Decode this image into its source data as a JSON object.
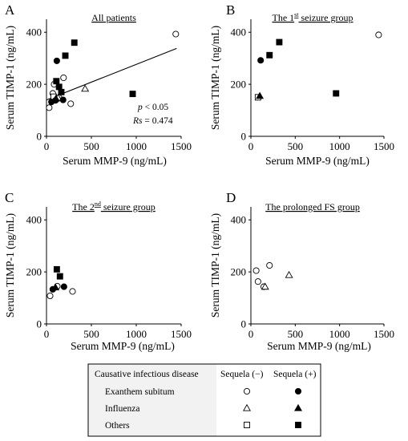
{
  "figure": {
    "legend": {
      "header": "Causative infectious disease",
      "col_minus": "Sequela (−)",
      "col_plus": "Sequela (+)",
      "rows": [
        {
          "label": "Exanthem subitum",
          "shape": "circle"
        },
        {
          "label": "Influenza",
          "shape": "triangle"
        },
        {
          "label": "Others",
          "shape": "square"
        }
      ]
    },
    "colors": {
      "filled": "#000000",
      "open_fill": "#ffffff",
      "stroke": "#000000",
      "legend_header_bg": "#f2f2f2"
    }
  },
  "chart_data": [
    {
      "id": "A",
      "panel_label": "A",
      "type": "scatter",
      "title": "All patients",
      "title_sup": "",
      "title_post": "",
      "xlabel": "Serum MMP-9 (ng/mL)",
      "ylabel": "Serum TIMP-1 (ng/mL)",
      "xlim": [
        0,
        1500
      ],
      "ylim": [
        0,
        450
      ],
      "xticks": [
        0,
        500,
        1000,
        1500
      ],
      "yticks": [
        0,
        200,
        400
      ],
      "grid": false,
      "annotation": {
        "p": "p",
        "p_rest": " < 0.05",
        "rs": "Rs",
        "rs_rest": " = 0.474"
      },
      "trendline": {
        "x": [
          0,
          1450
        ],
        "y": [
          140,
          338
        ]
      },
      "points": [
        {
          "x": 1440,
          "y": 393,
          "shape": "circle",
          "filled": false
        },
        {
          "x": 85,
          "y": 200,
          "shape": "circle",
          "filled": false
        },
        {
          "x": 190,
          "y": 225,
          "shape": "circle",
          "filled": false
        },
        {
          "x": 70,
          "y": 165,
          "shape": "circle",
          "filled": false
        },
        {
          "x": 30,
          "y": 110,
          "shape": "circle",
          "filled": false
        },
        {
          "x": 270,
          "y": 125,
          "shape": "circle",
          "filled": false
        },
        {
          "x": 140,
          "y": 148,
          "shape": "circle",
          "filled": false
        },
        {
          "x": 110,
          "y": 142,
          "shape": "circle",
          "filled": false
        },
        {
          "x": 430,
          "y": 183,
          "shape": "triangle",
          "filled": false
        },
        {
          "x": 130,
          "y": 148,
          "shape": "triangle",
          "filled": false
        },
        {
          "x": 80,
          "y": 152,
          "shape": "square",
          "filled": false
        },
        {
          "x": 115,
          "y": 290,
          "shape": "circle",
          "filled": true
        },
        {
          "x": 55,
          "y": 132,
          "shape": "circle",
          "filled": true
        },
        {
          "x": 100,
          "y": 138,
          "shape": "circle",
          "filled": true
        },
        {
          "x": 185,
          "y": 140,
          "shape": "circle",
          "filled": true
        },
        {
          "x": 105,
          "y": 145,
          "shape": "triangle",
          "filled": true
        },
        {
          "x": 310,
          "y": 360,
          "shape": "square",
          "filled": true
        },
        {
          "x": 210,
          "y": 310,
          "shape": "square",
          "filled": true
        },
        {
          "x": 960,
          "y": 163,
          "shape": "square",
          "filled": true
        },
        {
          "x": 110,
          "y": 212,
          "shape": "square",
          "filled": true
        },
        {
          "x": 140,
          "y": 190,
          "shape": "square",
          "filled": true
        },
        {
          "x": 165,
          "y": 170,
          "shape": "square",
          "filled": true
        }
      ]
    },
    {
      "id": "B",
      "panel_label": "B",
      "type": "scatter",
      "title": "The 1",
      "title_sup": "st",
      "title_post": " seizure group",
      "xlabel": "Serum MMP-9 (ng/mL)",
      "ylabel": "Serum TIMP-1 (ng/mL)",
      "xlim": [
        0,
        1500
      ],
      "ylim": [
        0,
        450
      ],
      "xticks": [
        0,
        500,
        1000,
        1500
      ],
      "yticks": [
        0,
        200,
        400
      ],
      "grid": false,
      "points": [
        {
          "x": 1440,
          "y": 390,
          "shape": "circle",
          "filled": false
        },
        {
          "x": 80,
          "y": 150,
          "shape": "square",
          "filled": false
        },
        {
          "x": 110,
          "y": 292,
          "shape": "circle",
          "filled": true
        },
        {
          "x": 100,
          "y": 155,
          "shape": "triangle",
          "filled": true
        },
        {
          "x": 320,
          "y": 362,
          "shape": "square",
          "filled": true
        },
        {
          "x": 210,
          "y": 312,
          "shape": "square",
          "filled": true
        },
        {
          "x": 960,
          "y": 165,
          "shape": "square",
          "filled": true
        }
      ]
    },
    {
      "id": "C",
      "panel_label": "C",
      "type": "scatter",
      "title": "The 2",
      "title_sup": "nd",
      "title_post": " seizure group",
      "xlabel": "Serum MMP-9 (ng/mL)",
      "ylabel": "Serum TIMP-1 (ng/mL)",
      "xlim": [
        0,
        1500
      ],
      "ylim": [
        0,
        450
      ],
      "xticks": [
        0,
        500,
        1000,
        1500
      ],
      "yticks": [
        0,
        200,
        400
      ],
      "grid": false,
      "points": [
        {
          "x": 40,
          "y": 108,
          "shape": "circle",
          "filled": false
        },
        {
          "x": 290,
          "y": 125,
          "shape": "circle",
          "filled": false
        },
        {
          "x": 120,
          "y": 145,
          "shape": "circle",
          "filled": false
        },
        {
          "x": 70,
          "y": 133,
          "shape": "circle",
          "filled": true
        },
        {
          "x": 195,
          "y": 143,
          "shape": "circle",
          "filled": true
        },
        {
          "x": 100,
          "y": 140,
          "shape": "triangle",
          "filled": true
        },
        {
          "x": 115,
          "y": 210,
          "shape": "square",
          "filled": true
        },
        {
          "x": 150,
          "y": 183,
          "shape": "square",
          "filled": true
        }
      ]
    },
    {
      "id": "D",
      "panel_label": "D",
      "type": "scatter",
      "title": "The prolonged FS group",
      "title_sup": "",
      "title_post": "",
      "xlabel": "Serum MMP-9 (ng/mL)",
      "ylabel": "Serum TIMP-1 (ng/mL)",
      "xlim": [
        0,
        1500
      ],
      "ylim": [
        0,
        450
      ],
      "xticks": [
        0,
        500,
        1000,
        1500
      ],
      "yticks": [
        0,
        200,
        400
      ],
      "grid": false,
      "points": [
        {
          "x": 60,
          "y": 205,
          "shape": "circle",
          "filled": false
        },
        {
          "x": 80,
          "y": 163,
          "shape": "circle",
          "filled": false
        },
        {
          "x": 210,
          "y": 225,
          "shape": "circle",
          "filled": false
        },
        {
          "x": 145,
          "y": 143,
          "shape": "circle",
          "filled": false
        },
        {
          "x": 430,
          "y": 188,
          "shape": "triangle",
          "filled": false
        },
        {
          "x": 160,
          "y": 143,
          "shape": "triangle",
          "filled": false
        }
      ]
    }
  ]
}
